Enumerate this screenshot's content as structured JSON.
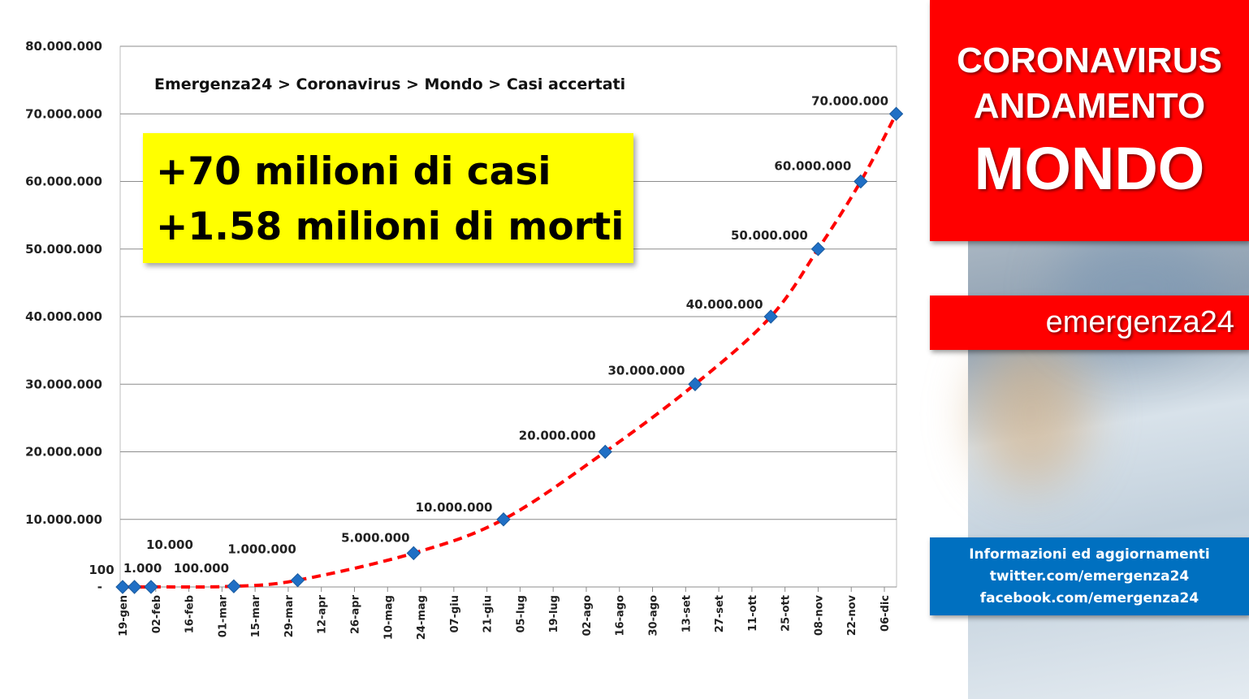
{
  "chart_data": {
    "type": "line",
    "title": "Emergenza24 > Coronavirus >  Mondo > Casi accertati",
    "xlabel": "",
    "ylabel": "",
    "ylim": [
      0,
      80000000
    ],
    "y_ticks": [
      {
        "value": 80000000,
        "label": "80.000.000"
      },
      {
        "value": 70000000,
        "label": "70.000.000"
      },
      {
        "value": 60000000,
        "label": "60.000.000"
      },
      {
        "value": 50000000,
        "label": "50.000.000"
      },
      {
        "value": 40000000,
        "label": "40.000.000"
      },
      {
        "value": 30000000,
        "label": "30.000.000"
      },
      {
        "value": 20000000,
        "label": "20.000.000"
      },
      {
        "value": 10000000,
        "label": "10.000.000"
      },
      {
        "value": 0,
        "label": "-"
      }
    ],
    "x_ticks": [
      "19-gen",
      "02-feb",
      "16-feb",
      "01-mar",
      "15-mar",
      "29-mar",
      "12-apr",
      "26-apr",
      "10-mag",
      "24-mag",
      "07-giu",
      "21-giu",
      "05-lug",
      "19-lug",
      "02-ago",
      "16-ago",
      "30-ago",
      "13-set",
      "27-set",
      "11-ott",
      "25-ott",
      "08-nov",
      "22-nov",
      "06-dic"
    ],
    "x_range": [
      "2020-01-19",
      "2020-12-06"
    ],
    "grid": true,
    "series": [
      {
        "line_style": "dashed",
        "line_color": "#ff0000",
        "marker": "diamond",
        "marker_color": "#1f6fc5",
        "points": [
          {
            "date": "2020-01-19",
            "value": 100,
            "label": "100"
          },
          {
            "date": "2020-01-24",
            "value": 1000,
            "label": "1.000"
          },
          {
            "date": "2020-01-31",
            "value": 10000,
            "label": "10.000"
          },
          {
            "date": "2020-03-06",
            "value": 100000,
            "label": "100.000"
          },
          {
            "date": "2020-04-02",
            "value": 1000000,
            "label": "1.000.000"
          },
          {
            "date": "2020-05-21",
            "value": 5000000,
            "label": "5.000.000"
          },
          {
            "date": "2020-06-28",
            "value": 10000000,
            "label": "10.000.000"
          },
          {
            "date": "2020-08-10",
            "value": 20000000,
            "label": "20.000.000"
          },
          {
            "date": "2020-09-17",
            "value": 30000000,
            "label": "30.000.000"
          },
          {
            "date": "2020-10-19",
            "value": 40000000,
            "label": "40.000.000"
          },
          {
            "date": "2020-11-08",
            "value": 50000000,
            "label": "50.000.000"
          },
          {
            "date": "2020-11-26",
            "value": 60000000,
            "label": "60.000.000"
          },
          {
            "date": "2020-12-11",
            "value": 70000000,
            "label": "70.000.000"
          }
        ]
      }
    ]
  },
  "callout": {
    "line1": "+70 milioni di casi",
    "line2": "+1.58 milioni di morti",
    "color": "#ffff00"
  },
  "side": {
    "headline1": "CORONAVIRUS",
    "headline2": "ANDAMENTO",
    "headline3": "MONDO",
    "brand": "emergenza24",
    "info_line1": "Informazioni ed aggiornamenti",
    "info_line2": "twitter.com/emergenza24",
    "info_line3": "facebook.com/emergenza24",
    "red": "#ff0000",
    "blue": "#0070c0"
  }
}
